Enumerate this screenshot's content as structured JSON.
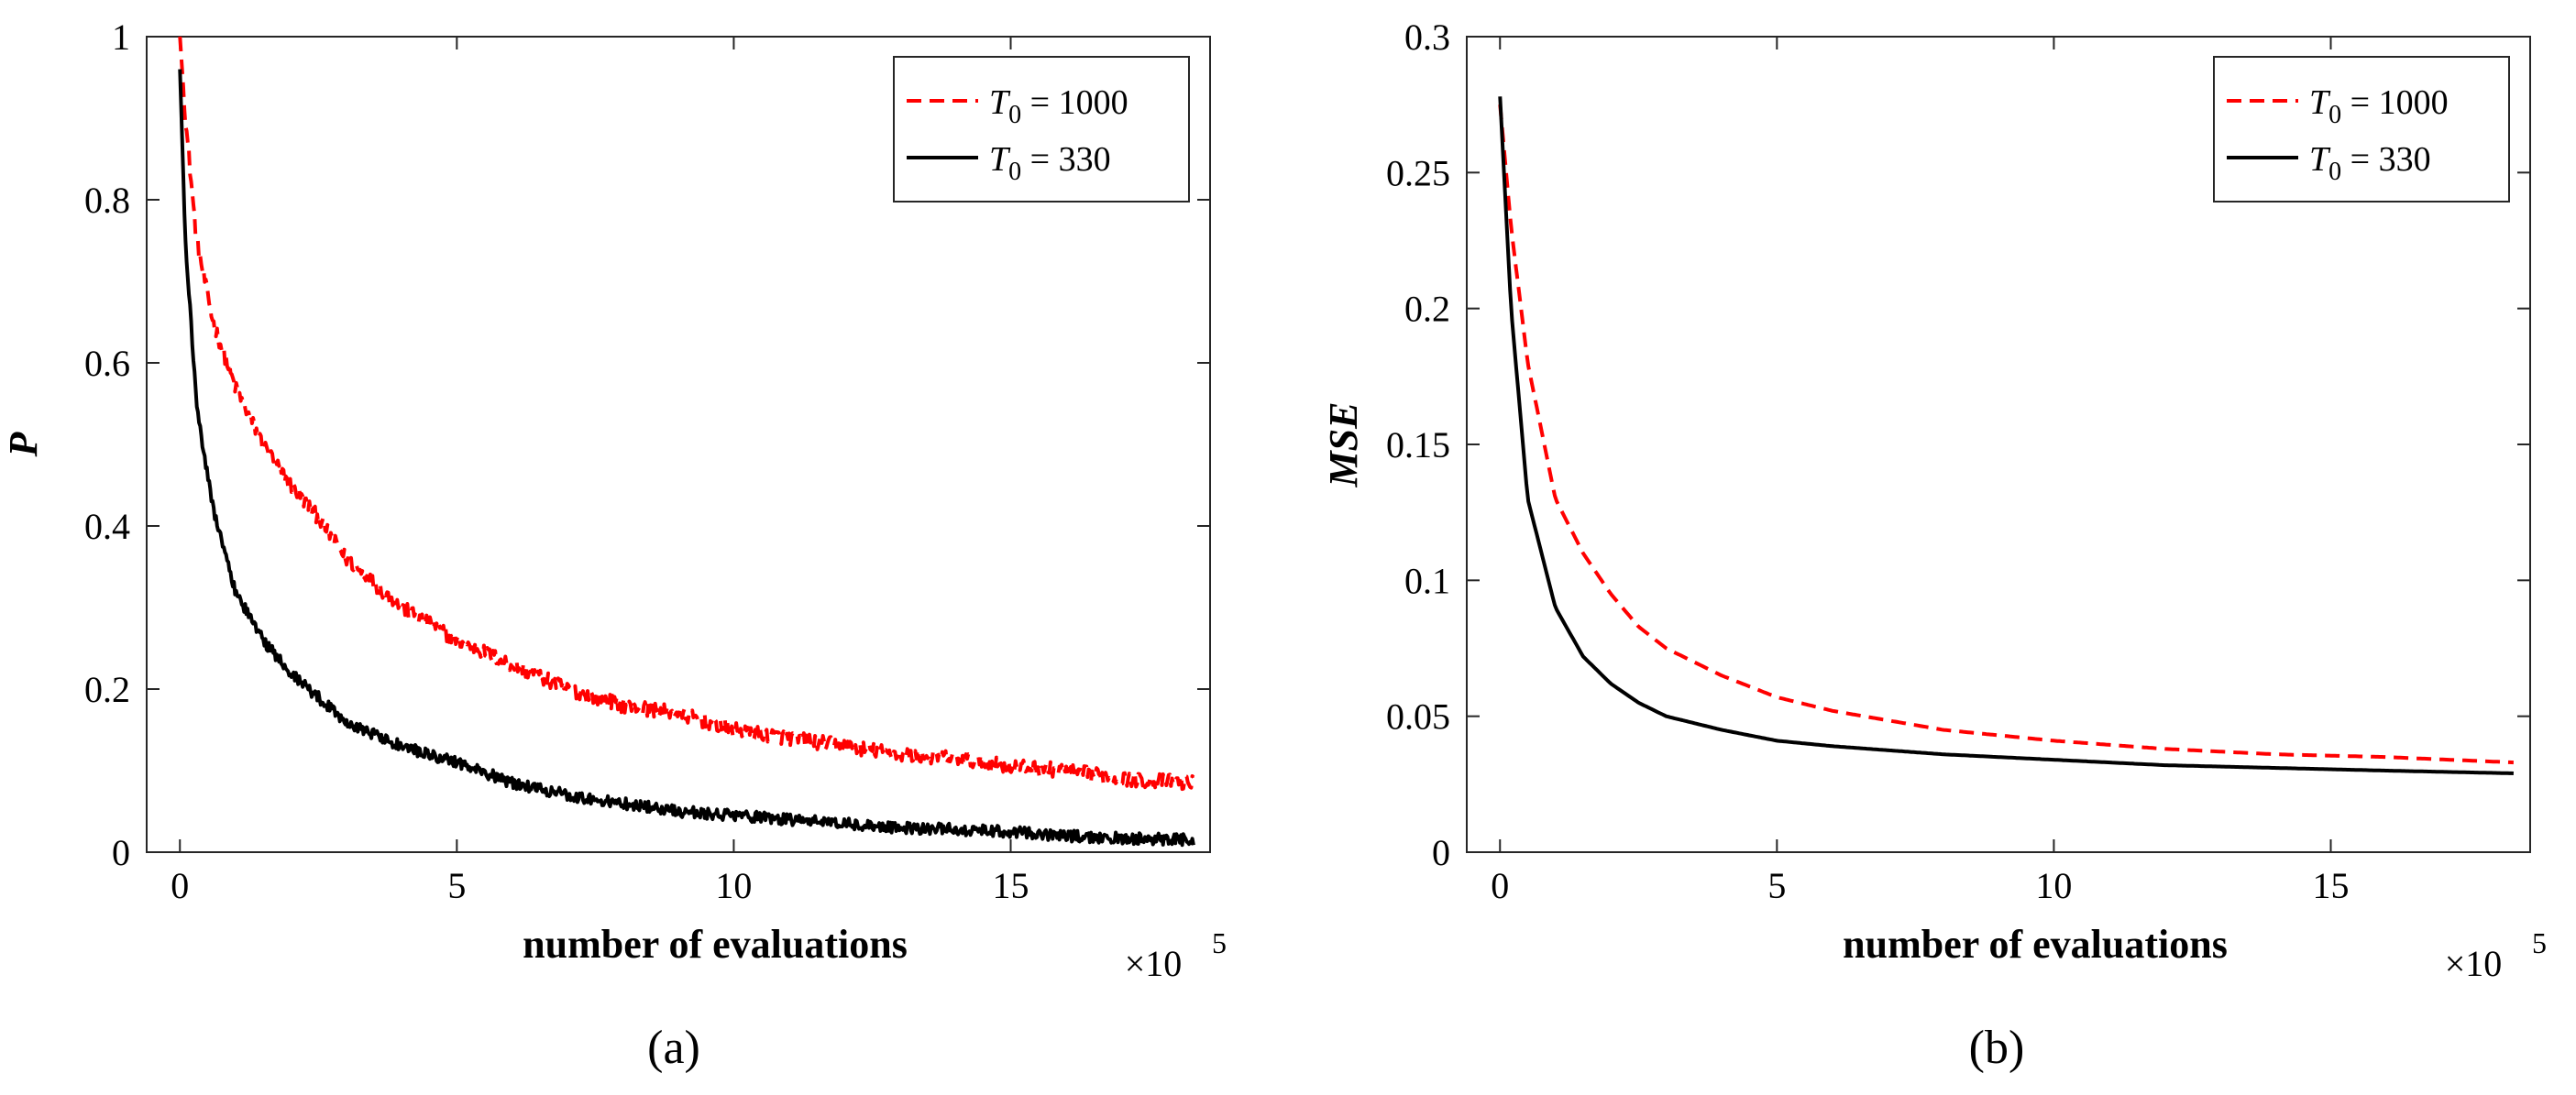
{
  "chart_data": [
    {
      "id": "a",
      "type": "line",
      "caption": "(a)",
      "title": "",
      "xlabel": "number of evaluations",
      "ylabel": "P",
      "x_multiplier_label": "×10",
      "x_multiplier_exponent": "5",
      "xlim": [
        -0.6,
        18.6
      ],
      "ylim": [
        0,
        1
      ],
      "xticks": [
        0,
        5,
        10,
        15
      ],
      "xtick_labels": [
        "0",
        "5",
        "10",
        "15"
      ],
      "yticks": [
        0,
        0.2,
        0.4,
        0.6,
        0.8,
        1
      ],
      "ytick_labels": [
        "0",
        "0.2",
        "0.4",
        "0.6",
        "0.8",
        "1"
      ],
      "grid": false,
      "legend_position": "top-right",
      "series": [
        {
          "name_sym": "T",
          "name_sub": "0",
          "name_rest": " = 1000",
          "color": "#ff0000",
          "dash": "dashed",
          "noise": 0.009,
          "x": [
            0,
            0.1,
            0.3,
            0.6,
            1,
            1.5,
            2,
            2.5,
            3,
            4,
            5,
            6,
            7,
            8,
            9,
            10,
            11,
            12,
            13,
            14,
            15,
            16,
            17,
            18.3
          ],
          "y": [
            1.0,
            0.9,
            0.75,
            0.65,
            0.57,
            0.5,
            0.45,
            0.41,
            0.36,
            0.3,
            0.26,
            0.23,
            0.2,
            0.18,
            0.17,
            0.15,
            0.14,
            0.13,
            0.12,
            0.115,
            0.105,
            0.1,
            0.09,
            0.085
          ]
        },
        {
          "name_sym": "T",
          "name_sub": "0",
          "name_rest": " = 330",
          "color": "#000000",
          "dash": "solid",
          "noise": 0.007,
          "x": [
            0,
            0.1,
            0.3,
            0.6,
            1,
            1.5,
            2,
            2.5,
            3,
            4,
            5,
            6,
            7,
            8,
            9,
            10,
            11,
            12,
            13,
            14,
            15,
            16,
            17,
            18.3
          ],
          "y": [
            0.96,
            0.75,
            0.55,
            0.42,
            0.32,
            0.26,
            0.22,
            0.19,
            0.16,
            0.13,
            0.11,
            0.085,
            0.07,
            0.06,
            0.05,
            0.045,
            0.04,
            0.035,
            0.03,
            0.028,
            0.025,
            0.02,
            0.017,
            0.015
          ]
        }
      ]
    },
    {
      "id": "b",
      "type": "line",
      "caption": "(b)",
      "title": "",
      "xlabel": "number of evaluations",
      "ylabel": "MSE",
      "x_multiplier_label": "×10",
      "x_multiplier_exponent": "5",
      "xlim": [
        -0.6,
        18.6
      ],
      "ylim": [
        0,
        0.3
      ],
      "xticks": [
        0,
        5,
        10,
        15
      ],
      "xtick_labels": [
        "0",
        "5",
        "10",
        "15"
      ],
      "yticks": [
        0,
        0.05,
        0.1,
        0.15,
        0.2,
        0.25,
        0.3
      ],
      "ytick_labels": [
        "0",
        "0.05",
        "0.1",
        "0.15",
        "0.2",
        "0.25",
        "0.3"
      ],
      "grid": false,
      "legend_position": "top-right",
      "series": [
        {
          "name_sym": "T",
          "name_sub": "0",
          "name_rest": " = 1000",
          "color": "#ff0000",
          "dash": "dashed",
          "noise": 0,
          "x": [
            0,
            0.2,
            0.5,
            1,
            1.5,
            2,
            2.5,
            3,
            4,
            5,
            6,
            8,
            10,
            12,
            14,
            16,
            18.3
          ],
          "y": [
            0.275,
            0.23,
            0.18,
            0.13,
            0.11,
            0.095,
            0.083,
            0.075,
            0.065,
            0.057,
            0.052,
            0.045,
            0.041,
            0.038,
            0.036,
            0.035,
            0.033
          ]
        },
        {
          "name_sym": "T",
          "name_sub": "0",
          "name_rest": " = 330",
          "color": "#000000",
          "dash": "solid",
          "noise": 0,
          "x": [
            0,
            0.2,
            0.5,
            1,
            1.5,
            2,
            2.5,
            3,
            4,
            5,
            6,
            8,
            10,
            12,
            14,
            16,
            18.3
          ],
          "y": [
            0.278,
            0.2,
            0.13,
            0.09,
            0.072,
            0.062,
            0.055,
            0.05,
            0.045,
            0.041,
            0.039,
            0.036,
            0.034,
            0.032,
            0.031,
            0.03,
            0.029
          ]
        }
      ]
    }
  ]
}
